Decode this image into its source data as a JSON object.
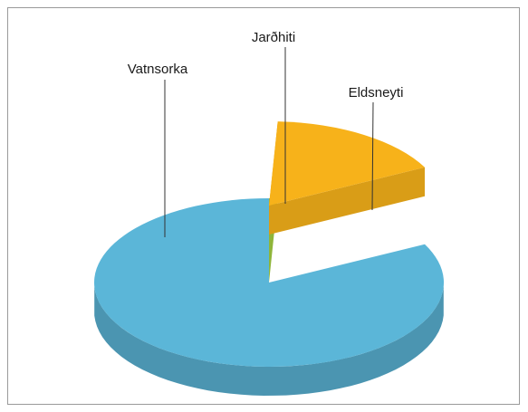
{
  "chart_data": {
    "type": "pie",
    "style": "3d-exploded",
    "title": "",
    "categories": [
      "Vatnsorka",
      "Jarðhiti",
      "Eldsneyti"
    ],
    "values": [
      82.5,
      16.7,
      0.8
    ],
    "unit": "",
    "exploded": [
      "Jarðhiti"
    ],
    "colors": {
      "Vatnsorka": "#5bb6d8",
      "Jarðhiti": "#f7b21a",
      "Eldsneyti": "#8fb53a"
    },
    "legend": "none"
  }
}
